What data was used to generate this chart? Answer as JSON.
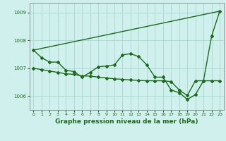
{
  "line1": {
    "x": [
      0,
      23
    ],
    "y": [
      1007.65,
      1009.05
    ],
    "color": "#1a6b1a",
    "lw": 1.0,
    "marker": null,
    "ms": 0
  },
  "line2": {
    "x": [
      0,
      1,
      2,
      3,
      4,
      5,
      6,
      7,
      8,
      9,
      10,
      11,
      12,
      13,
      14,
      15,
      16,
      17,
      18,
      19,
      20,
      21,
      22,
      23
    ],
    "y": [
      1007.65,
      1007.38,
      1007.22,
      1007.22,
      1006.93,
      1006.88,
      1006.68,
      1006.85,
      1007.05,
      1007.08,
      1007.12,
      1007.48,
      1007.52,
      1007.42,
      1007.12,
      1006.68,
      1006.68,
      1006.22,
      1006.12,
      1005.88,
      1006.05,
      1006.55,
      1008.15,
      1009.05
    ],
    "color": "#1a6b1a",
    "lw": 1.0,
    "marker": "D",
    "ms": 2.0
  },
  "line3": {
    "x": [
      0,
      1,
      2,
      3,
      4,
      5,
      6,
      7,
      8,
      9,
      10,
      11,
      12,
      13,
      14,
      15,
      16,
      17,
      18,
      19,
      20,
      21,
      22,
      23
    ],
    "y": [
      1007.0,
      1006.95,
      1006.9,
      1006.85,
      1006.8,
      1006.78,
      1006.72,
      1006.72,
      1006.68,
      1006.65,
      1006.62,
      1006.6,
      1006.58,
      1006.56,
      1006.55,
      1006.55,
      1006.55,
      1006.52,
      1006.22,
      1006.02,
      1006.55,
      1006.55,
      1006.55,
      1006.55
    ],
    "color": "#1a6b1a",
    "lw": 1.0,
    "marker": "D",
    "ms": 2.0
  },
  "bg_color": "#d0f0ee",
  "grid_color": "#a8d8d4",
  "line_color": "#1a6b1a",
  "xlabel": "Graphe pression niveau de la mer (hPa)",
  "xlabel_fontsize": 6.5,
  "ylim": [
    1005.5,
    1009.35
  ],
  "yticks": [
    1006,
    1007,
    1008,
    1009
  ],
  "xticks": [
    0,
    1,
    2,
    3,
    4,
    5,
    6,
    7,
    8,
    9,
    10,
    11,
    12,
    13,
    14,
    15,
    16,
    17,
    18,
    19,
    20,
    21,
    22,
    23
  ]
}
